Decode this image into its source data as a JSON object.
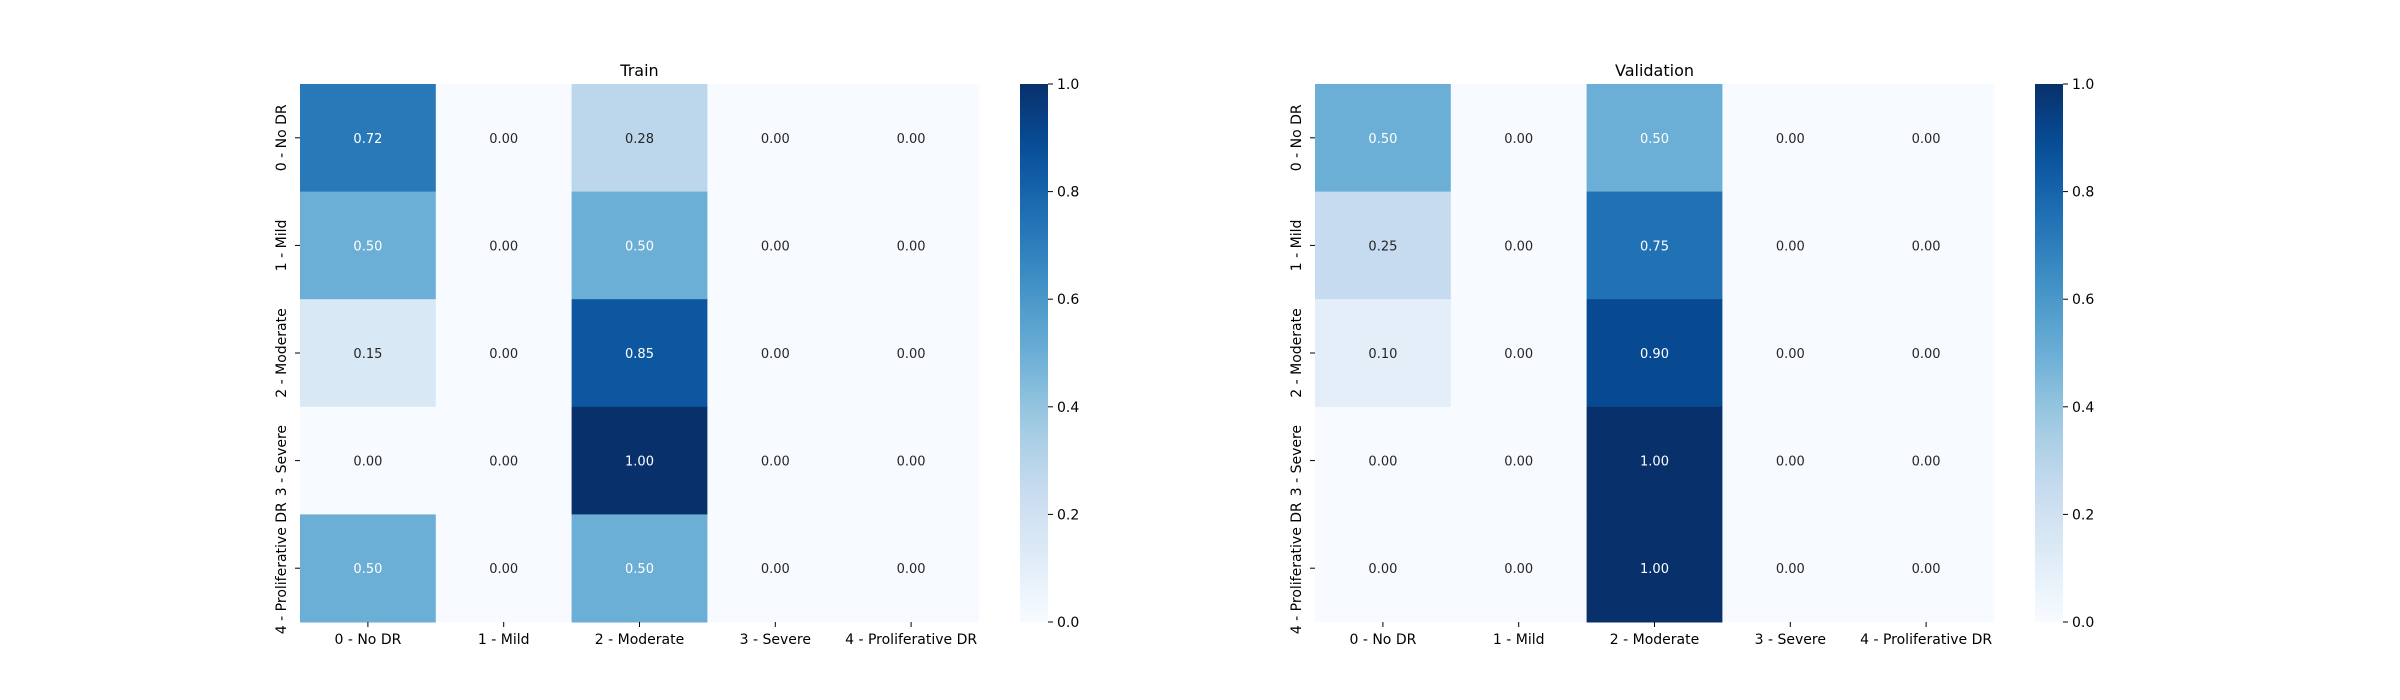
{
  "chart_data": [
    {
      "type": "heatmap",
      "title": "Train",
      "x_categories": [
        "0 - No DR",
        "1 - Mild",
        "2 - Moderate",
        "3 - Severe",
        "4 - Proliferative DR"
      ],
      "y_categories": [
        "0 - No DR",
        "1 - Mild",
        "2 - Moderate",
        "3 - Severe",
        "4 - Proliferative DR"
      ],
      "values": [
        [
          0.72,
          0.0,
          0.28,
          0.0,
          0.0
        ],
        [
          0.5,
          0.0,
          0.5,
          0.0,
          0.0
        ],
        [
          0.15,
          0.0,
          0.85,
          0.0,
          0.0
        ],
        [
          0.0,
          0.0,
          1.0,
          0.0,
          0.0
        ],
        [
          0.5,
          0.0,
          0.5,
          0.0,
          0.0
        ]
      ],
      "colorbar": {
        "range": [
          0.0,
          1.0
        ],
        "ticks": [
          "0.0",
          "0.2",
          "0.4",
          "0.6",
          "0.8",
          "1.0"
        ],
        "colormap": "Blues"
      }
    },
    {
      "type": "heatmap",
      "title": "Validation",
      "x_categories": [
        "0 - No DR",
        "1 - Mild",
        "2 - Moderate",
        "3 - Severe",
        "4 - Proliferative DR"
      ],
      "y_categories": [
        "0 - No DR",
        "1 - Mild",
        "2 - Moderate",
        "3 - Severe",
        "4 - Proliferative DR"
      ],
      "values": [
        [
          0.5,
          0.0,
          0.5,
          0.0,
          0.0
        ],
        [
          0.25,
          0.0,
          0.75,
          0.0,
          0.0
        ],
        [
          0.1,
          0.0,
          0.9,
          0.0,
          0.0
        ],
        [
          0.0,
          0.0,
          1.0,
          0.0,
          0.0
        ],
        [
          0.0,
          0.0,
          1.0,
          0.0,
          0.0
        ]
      ],
      "colorbar": {
        "range": [
          0.0,
          1.0
        ],
        "ticks": [
          "0.0",
          "0.2",
          "0.4",
          "0.6",
          "0.8",
          "1.0"
        ],
        "colormap": "Blues"
      }
    }
  ]
}
